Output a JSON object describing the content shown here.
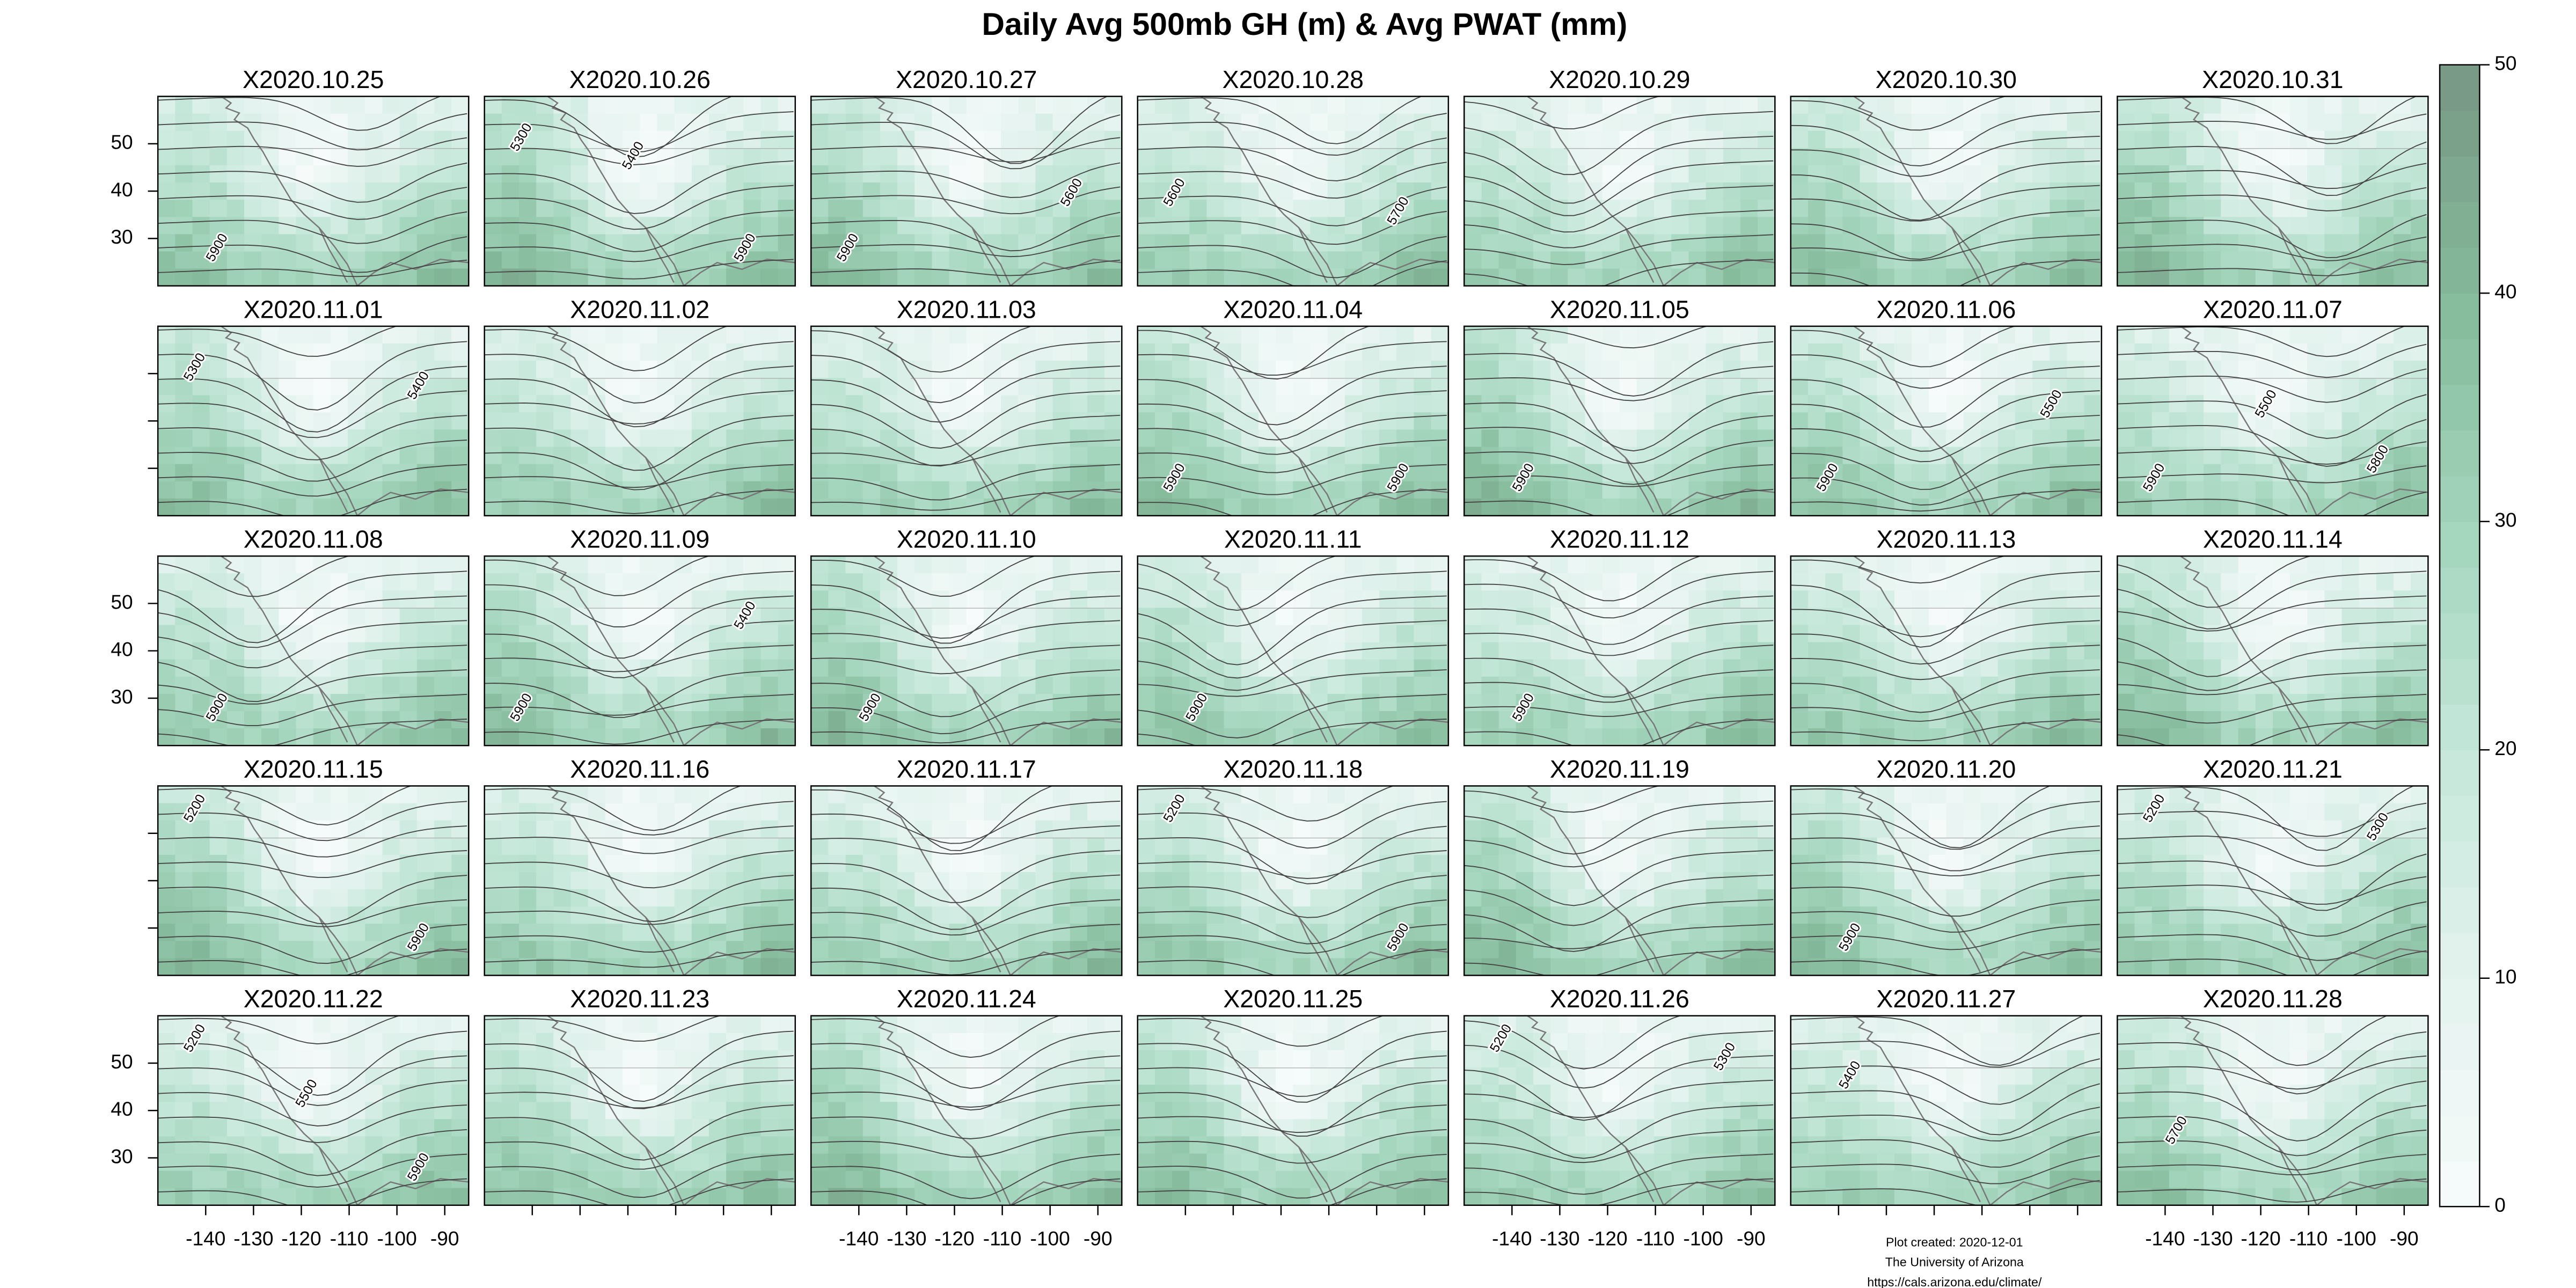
{
  "title": "Daily Avg 500mb GH (m) & Avg PWAT (mm)",
  "panels": [
    {
      "title": "X2020.10.25",
      "contour_labels": [
        "5900"
      ]
    },
    {
      "title": "X2020.10.26",
      "contour_labels": [
        "5300",
        "5400",
        "5900"
      ]
    },
    {
      "title": "X2020.10.27",
      "contour_labels": [
        "5900",
        "5600"
      ]
    },
    {
      "title": "X2020.10.28",
      "contour_labels": [
        "5600",
        "5700"
      ]
    },
    {
      "title": "X2020.10.29",
      "contour_labels": []
    },
    {
      "title": "X2020.10.30",
      "contour_labels": []
    },
    {
      "title": "X2020.10.31",
      "contour_labels": []
    },
    {
      "title": "X2020.11.01",
      "contour_labels": [
        "5300",
        "5400"
      ]
    },
    {
      "title": "X2020.11.02",
      "contour_labels": []
    },
    {
      "title": "X2020.11.03",
      "contour_labels": []
    },
    {
      "title": "X2020.11.04",
      "contour_labels": [
        "5900",
        "5900"
      ]
    },
    {
      "title": "X2020.11.05",
      "contour_labels": [
        "5900"
      ]
    },
    {
      "title": "X2020.11.06",
      "contour_labels": [
        "5900",
        "5500"
      ]
    },
    {
      "title": "X2020.11.07",
      "contour_labels": [
        "5900",
        "5500",
        "5800"
      ]
    },
    {
      "title": "X2020.11.08",
      "contour_labels": [
        "5900"
      ]
    },
    {
      "title": "X2020.11.09",
      "contour_labels": [
        "5900",
        "5400"
      ]
    },
    {
      "title": "X2020.11.10",
      "contour_labels": [
        "5900"
      ]
    },
    {
      "title": "X2020.11.11",
      "contour_labels": [
        "5900"
      ]
    },
    {
      "title": "X2020.11.12",
      "contour_labels": [
        "5900"
      ]
    },
    {
      "title": "X2020.11.13",
      "contour_labels": []
    },
    {
      "title": "X2020.11.14",
      "contour_labels": []
    },
    {
      "title": "X2020.11.15",
      "contour_labels": [
        "5200",
        "5900"
      ]
    },
    {
      "title": "X2020.11.16",
      "contour_labels": []
    },
    {
      "title": "X2020.11.17",
      "contour_labels": []
    },
    {
      "title": "X2020.11.18",
      "contour_labels": [
        "5200",
        "5900"
      ]
    },
    {
      "title": "X2020.11.19",
      "contour_labels": []
    },
    {
      "title": "X2020.11.20",
      "contour_labels": [
        "5900"
      ]
    },
    {
      "title": "X2020.11.21",
      "contour_labels": [
        "5200",
        "5300"
      ]
    },
    {
      "title": "X2020.11.22",
      "contour_labels": [
        "5200",
        "5500",
        "5900"
      ]
    },
    {
      "title": "X2020.11.23",
      "contour_labels": []
    },
    {
      "title": "X2020.11.24",
      "contour_labels": []
    },
    {
      "title": "X2020.11.25",
      "contour_labels": []
    },
    {
      "title": "X2020.11.26",
      "contour_labels": [
        "5200",
        "5300"
      ]
    },
    {
      "title": "X2020.11.27",
      "contour_labels": [
        "5400"
      ]
    },
    {
      "title": "X2020.11.28",
      "contour_labels": [
        "5700"
      ]
    }
  ],
  "axes": {
    "xlim": [
      -150,
      -85
    ],
    "xticks": [
      -140,
      -130,
      -120,
      -110,
      -100,
      -90
    ],
    "ylim": [
      20,
      60
    ],
    "yticks": [
      30,
      40,
      50
    ]
  },
  "colorbar": {
    "lim": [
      0,
      50
    ],
    "ticks": [
      0,
      10,
      20,
      30,
      40,
      50
    ]
  },
  "footer": [
    "Plot created: 2020-12-01",
    "The University of Arizona",
    "https://cals.arizona.edu/climate/"
  ]
}
